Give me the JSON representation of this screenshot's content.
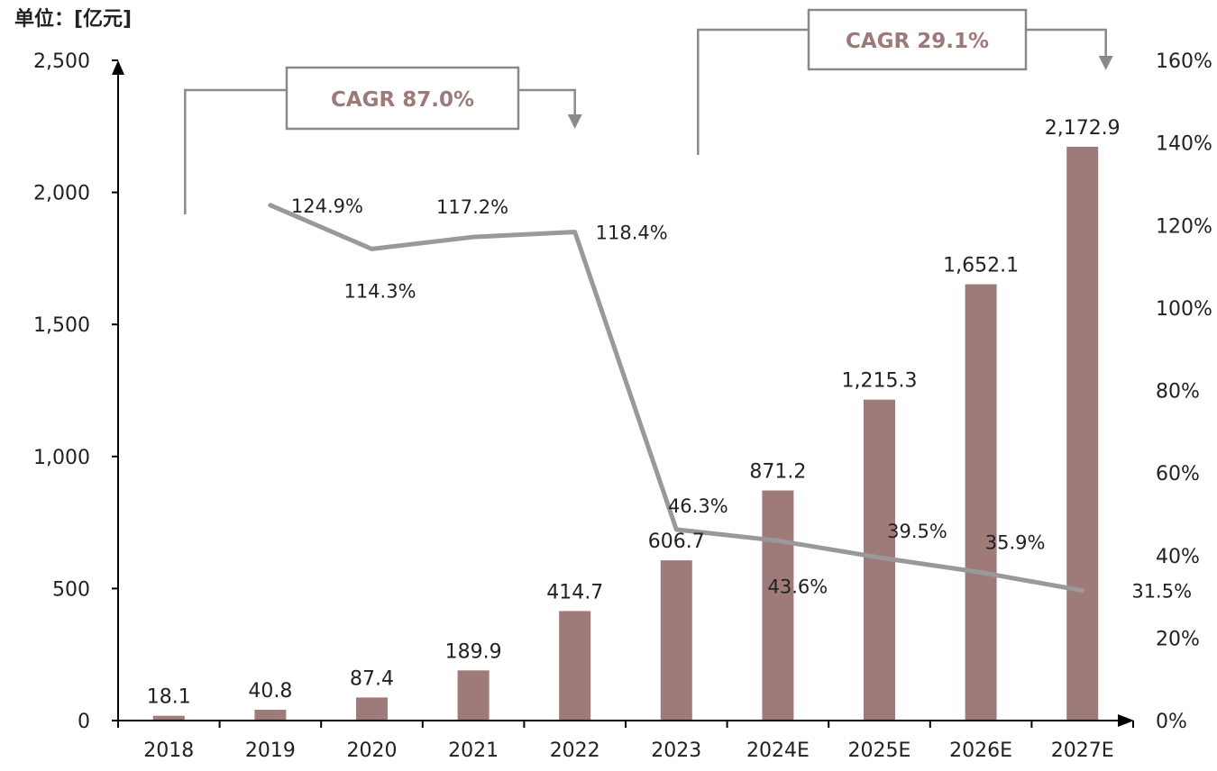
{
  "unit_label": "单位：[亿元]",
  "colors": {
    "bar": "#9e7b79",
    "line": "#999999",
    "axis": "#000000",
    "bracket": "#8a8a8a",
    "cagr_text": "#9c7a79"
  },
  "chart_data": {
    "type": "bar",
    "categories": [
      "2018",
      "2019",
      "2020",
      "2021",
      "2022",
      "2023",
      "2024E",
      "2025E",
      "2026E",
      "2027E"
    ],
    "series": [
      {
        "type": "bar",
        "axis": "left",
        "values": [
          18.1,
          40.8,
          87.4,
          189.9,
          414.7,
          606.7,
          871.2,
          1215.3,
          1652.1,
          2172.9
        ],
        "labels": [
          "18.1",
          "40.8",
          "87.4",
          "189.9",
          "414.7",
          "606.7",
          "871.2",
          "1,215.3",
          "1,652.1",
          "2,172.9"
        ]
      },
      {
        "type": "line",
        "axis": "right",
        "values": [
          null,
          124.9,
          114.3,
          117.2,
          118.4,
          46.3,
          43.6,
          39.5,
          35.9,
          31.5
        ],
        "labels": [
          "",
          "124.9%",
          "114.3%",
          "117.2%",
          "118.4%",
          "46.3%",
          "43.6%",
          "39.5%",
          "35.9%",
          "31.5%"
        ]
      }
    ],
    "left_axis": {
      "ylim": [
        0,
        2500
      ],
      "ticks": [
        0,
        500,
        1000,
        1500,
        2000,
        2500
      ],
      "tick_labels": [
        "0",
        "500",
        "1,000",
        "1,500",
        "2,000",
        "2,500"
      ]
    },
    "right_axis": {
      "ylim": [
        0,
        160
      ],
      "ticks": [
        0,
        20,
        40,
        60,
        80,
        100,
        120,
        140,
        160
      ],
      "tick_labels": [
        "0%",
        "20%",
        "40%",
        "60%",
        "80%",
        "100%",
        "120%",
        "140%",
        "160%"
      ]
    },
    "annotations": [
      {
        "text": "CAGR 87.0%",
        "from": "2018",
        "to": "2022"
      },
      {
        "text": "CAGR 29.1%",
        "from": "2023",
        "to": "2027E"
      }
    ],
    "grid": false
  }
}
